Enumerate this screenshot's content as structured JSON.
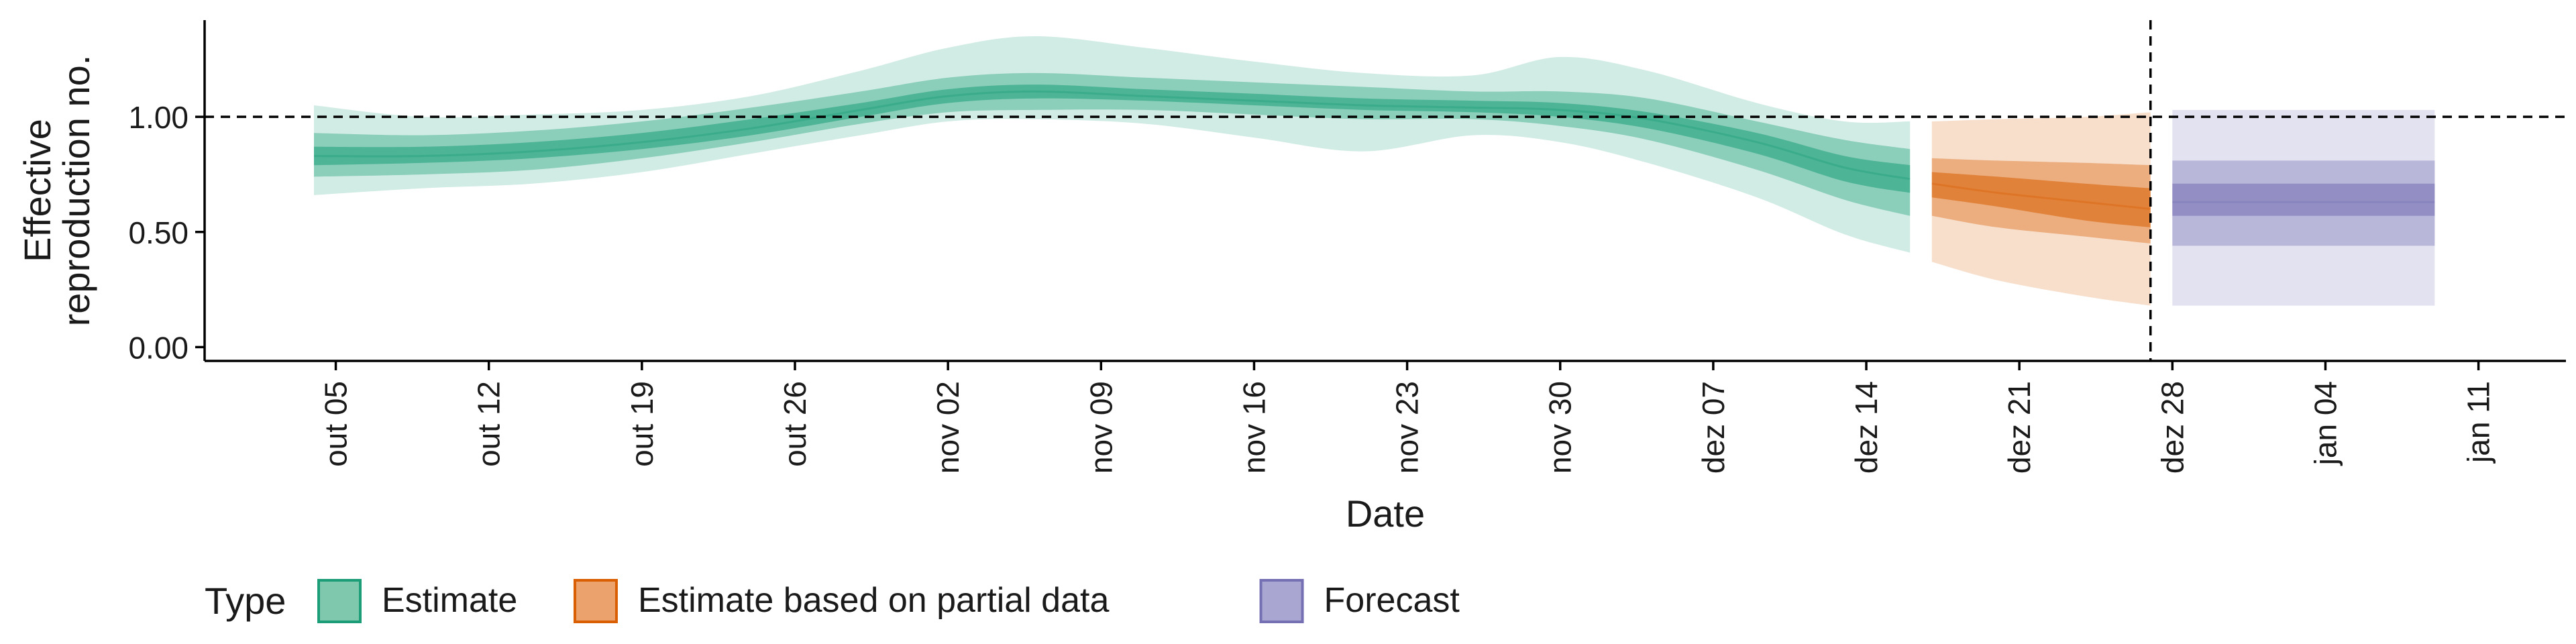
{
  "chart_data": {
    "type": "area",
    "xlabel": "Date",
    "ylabel": "Effective\nreproduction no.",
    "x_ticks": [
      "out 05",
      "out 12",
      "out 19",
      "out 26",
      "nov 02",
      "nov 09",
      "nov 16",
      "nov 23",
      "nov 30",
      "dez 07",
      "dez 14",
      "dez 21",
      "dez 28",
      "jan 04",
      "jan 11"
    ],
    "x_tick_dates": [
      "2020-10-05",
      "2020-10-12",
      "2020-10-19",
      "2020-10-26",
      "2020-11-02",
      "2020-11-09",
      "2020-11-16",
      "2020-11-23",
      "2020-11-30",
      "2020-12-07",
      "2020-12-14",
      "2020-12-21",
      "2020-12-28",
      "2021-01-04",
      "2021-01-11"
    ],
    "xlim": [
      "2020-09-29",
      "2021-01-15"
    ],
    "y_ticks": [
      "0.00",
      "0.50",
      "1.00"
    ],
    "ylim": [
      -0.06,
      1.42
    ],
    "reference_line_y": 1.0,
    "reference_line_x": "2020-12-27",
    "grid": false,
    "legend": {
      "title": "Type",
      "position": "bottom",
      "items": [
        {
          "label": "Estimate",
          "fill": "#7fc8ad",
          "border": "#1b9e77"
        },
        {
          "label": "Estimate based on partial data",
          "fill": "#eba26c",
          "border": "#d95f02"
        },
        {
          "label": "Forecast",
          "fill": "#aaa6d2",
          "border": "#7570b3"
        }
      ]
    },
    "series": [
      {
        "name": "Estimate",
        "color": "#1b9e77",
        "x": [
          "2020-10-04",
          "2020-10-09",
          "2020-10-14",
          "2020-10-19",
          "2020-10-24",
          "2020-10-29",
          "2020-11-02",
          "2020-11-06",
          "2020-11-11",
          "2020-11-16",
          "2020-11-21",
          "2020-11-26",
          "2020-11-30",
          "2020-12-04",
          "2020-12-09",
          "2020-12-13",
          "2020-12-16"
        ],
        "median": [
          0.83,
          0.83,
          0.85,
          0.89,
          0.95,
          1.03,
          1.09,
          1.11,
          1.09,
          1.07,
          1.05,
          1.04,
          1.03,
          0.99,
          0.89,
          0.78,
          0.73
        ],
        "lower_50": [
          0.79,
          0.8,
          0.82,
          0.86,
          0.92,
          1.0,
          1.06,
          1.08,
          1.07,
          1.05,
          1.03,
          1.02,
          1.0,
          0.95,
          0.84,
          0.72,
          0.67
        ],
        "upper_50": [
          0.87,
          0.87,
          0.89,
          0.93,
          0.99,
          1.06,
          1.12,
          1.14,
          1.12,
          1.1,
          1.08,
          1.07,
          1.06,
          1.02,
          0.93,
          0.83,
          0.79
        ],
        "lower_90": [
          0.74,
          0.75,
          0.77,
          0.82,
          0.89,
          0.97,
          1.02,
          1.03,
          1.03,
          1.01,
          0.99,
          0.99,
          0.96,
          0.9,
          0.77,
          0.64,
          0.57
        ],
        "upper_90": [
          0.93,
          0.92,
          0.94,
          0.98,
          1.04,
          1.11,
          1.17,
          1.19,
          1.17,
          1.15,
          1.13,
          1.11,
          1.11,
          1.08,
          0.98,
          0.9,
          0.86
        ],
        "lower_ci": [
          0.66,
          0.69,
          0.71,
          0.76,
          0.84,
          0.92,
          0.98,
          0.99,
          0.97,
          0.91,
          0.85,
          0.92,
          0.89,
          0.8,
          0.65,
          0.49,
          0.41
        ],
        "upper_ci": [
          1.05,
          1.0,
          1.01,
          1.03,
          1.09,
          1.2,
          1.3,
          1.35,
          1.3,
          1.24,
          1.19,
          1.18,
          1.26,
          1.2,
          1.06,
          0.98,
          0.98
        ]
      },
      {
        "name": "Estimate based on partial data",
        "color": "#d95f02",
        "x": [
          "2020-12-17",
          "2020-12-20",
          "2020-12-24",
          "2020-12-27"
        ],
        "median": [
          0.71,
          0.67,
          0.63,
          0.6
        ],
        "lower_50": [
          0.65,
          0.61,
          0.55,
          0.52
        ],
        "upper_50": [
          0.76,
          0.74,
          0.71,
          0.69
        ],
        "lower_90": [
          0.57,
          0.52,
          0.48,
          0.45
        ],
        "upper_90": [
          0.82,
          0.81,
          0.8,
          0.79
        ],
        "lower_ci": [
          0.37,
          0.29,
          0.22,
          0.18
        ],
        "upper_ci": [
          0.98,
          0.99,
          1.0,
          1.02
        ]
      },
      {
        "name": "Forecast",
        "color": "#7570b3",
        "x": [
          "2020-12-28",
          "2021-01-09"
        ],
        "median": [
          0.63,
          0.63
        ],
        "lower_50": [
          0.57,
          0.57
        ],
        "upper_50": [
          0.71,
          0.71
        ],
        "lower_90": [
          0.44,
          0.44
        ],
        "upper_90": [
          0.81,
          0.81
        ],
        "lower_ci": [
          0.18,
          0.18
        ],
        "upper_ci": [
          1.03,
          1.03
        ]
      }
    ]
  }
}
